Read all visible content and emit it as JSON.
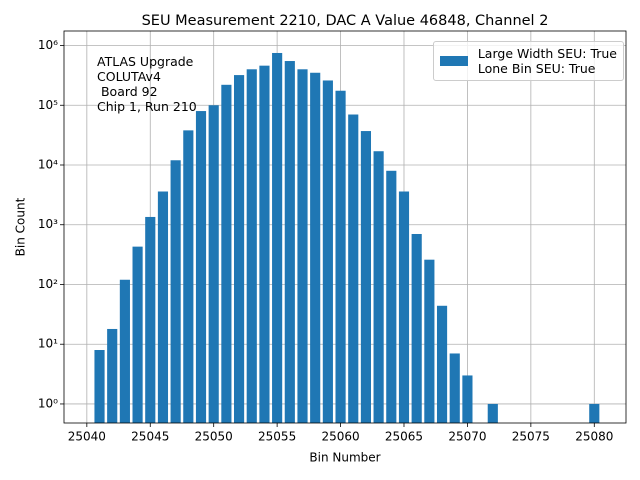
{
  "chart_data": {
    "type": "bar",
    "title": "SEU Measurement 2210, DAC A Value 46848, Channel 2",
    "x_label": "Bin Number",
    "y_label": "Bin Count",
    "annotation": "ATLAS Upgrade\nCOLUTAv4\n Board 92\nChip 1, Run 210",
    "x": [
      25041,
      25042,
      25043,
      25044,
      25045,
      25046,
      25047,
      25048,
      25049,
      25050,
      25051,
      25052,
      25053,
      25054,
      25055,
      25056,
      25057,
      25058,
      25059,
      25060,
      25061,
      25062,
      25063,
      25064,
      25065,
      25066,
      25067,
      25068,
      25069,
      25070,
      25072,
      25080
    ],
    "series": [
      {
        "name": "Large Width SEU: True\nLone Bin SEU: True",
        "color": "#1f77b4",
        "values": [
          8,
          18,
          120,
          430,
          1350,
          3600,
          12000,
          38000,
          80000,
          100000,
          220000,
          320000,
          400000,
          460000,
          750000,
          550000,
          400000,
          350000,
          260000,
          175000,
          70000,
          37000,
          17000,
          8000,
          3600,
          700,
          260,
          44,
          7,
          3,
          1,
          1
        ]
      }
    ],
    "bar_width": 0.8,
    "xlim": [
      25038.2,
      25082.5
    ],
    "xticks": [
      25040,
      25045,
      25050,
      25055,
      25060,
      25065,
      25070,
      25075,
      25080
    ],
    "ylim": [
      0.48,
      1750000
    ],
    "y_scale": "log",
    "yticks": [
      {
        "value": 1,
        "label": "10⁰"
      },
      {
        "value": 10,
        "label": "10¹"
      },
      {
        "value": 100,
        "label": "10²"
      },
      {
        "value": 1000,
        "label": "10³"
      },
      {
        "value": 10000,
        "label": "10⁴"
      },
      {
        "value": 100000,
        "label": "10⁵"
      },
      {
        "value": 1000000,
        "label": "10⁶"
      }
    ],
    "grid": true,
    "legend": "upper right"
  }
}
